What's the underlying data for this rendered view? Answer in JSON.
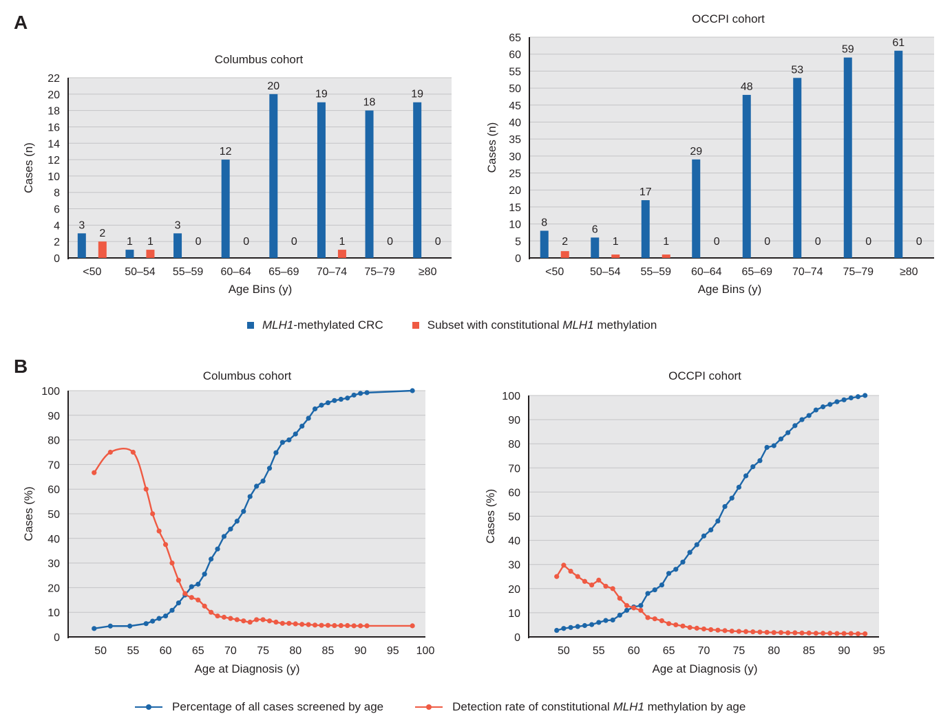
{
  "panels": {
    "a": "A",
    "b": "B"
  },
  "colors": {
    "blue": "#1c66a8",
    "orange": "#ef5a43",
    "plot_bg": "#e7e7e8",
    "grid": "#c4c4c6",
    "axis": "#231f20"
  },
  "legend_a": {
    "item1_italic": "MLH1",
    "item1_rest": "-methylated CRC",
    "item2_pre": "Subset with constitutional ",
    "item2_italic": "MLH1",
    "item2_post": " methylation"
  },
  "legend_b": {
    "item1": "Percentage of all cases screened by age",
    "item2_pre": "Detection rate of constitutional ",
    "item2_italic": "MLH1",
    "item2_post": " methylation by age"
  },
  "chart_data": [
    {
      "type": "bar",
      "title": "Columbus cohort",
      "xlabel": "Age Bins (y)",
      "ylabel": "Cases (n)",
      "categories": [
        "<50",
        "50–54",
        "55–59",
        "60–64",
        "65–69",
        "70–74",
        "75–79",
        "≥80"
      ],
      "ylim": [
        0,
        22
      ],
      "yticks": [
        0,
        2,
        4,
        6,
        8,
        10,
        12,
        14,
        16,
        18,
        20,
        22
      ],
      "grid": true,
      "series": [
        {
          "name": "MLH1-methylated CRC",
          "color": "#1c66a8",
          "values": [
            3,
            1,
            3,
            12,
            20,
            19,
            18,
            19
          ]
        },
        {
          "name": "Subset with constitutional MLH1 methylation",
          "color": "#ef5a43",
          "values": [
            2,
            1,
            0,
            0,
            0,
            1,
            0,
            0
          ]
        }
      ]
    },
    {
      "type": "bar",
      "title": "OCCPI cohort",
      "xlabel": "Age Bins (y)",
      "ylabel": "Cases (n)",
      "categories": [
        "<50",
        "50–54",
        "55–59",
        "60–64",
        "65–69",
        "70–74",
        "75–79",
        "≥80"
      ],
      "ylim": [
        0,
        65
      ],
      "yticks": [
        0,
        5,
        10,
        15,
        20,
        25,
        30,
        35,
        40,
        45,
        50,
        55,
        60,
        65
      ],
      "grid": true,
      "series": [
        {
          "name": "MLH1-methylated CRC",
          "color": "#1c66a8",
          "values": [
            8,
            6,
            17,
            29,
            48,
            53,
            59,
            61
          ]
        },
        {
          "name": "Subset with constitutional MLH1 methylation",
          "color": "#ef5a43",
          "values": [
            2,
            1,
            1,
            0,
            0,
            0,
            0,
            0
          ]
        }
      ]
    },
    {
      "type": "line",
      "title": "Columbus cohort",
      "xlabel": "Age at Diagnosis (y)",
      "ylabel": "Cases (%)",
      "xlim": [
        45,
        100
      ],
      "xticks": [
        50,
        55,
        60,
        65,
        70,
        75,
        80,
        85,
        90,
        95,
        100
      ],
      "ylim": [
        0,
        100
      ],
      "yticks": [
        0,
        10,
        20,
        30,
        40,
        50,
        60,
        70,
        80,
        90,
        100
      ],
      "grid": true,
      "series": [
        {
          "name": "Percentage of all cases screened by age",
          "color": "#1c66a8",
          "smooth": false,
          "x": [
            49,
            51.5,
            54.5,
            57,
            58,
            59,
            60,
            61,
            62,
            63,
            64,
            65,
            66,
            67,
            68,
            69,
            70,
            71,
            72,
            73,
            74,
            75,
            76,
            77,
            78,
            79,
            80,
            81,
            82,
            83,
            84,
            85,
            86,
            87,
            88,
            89,
            90,
            91,
            98
          ],
          "y": [
            3.4,
            4.4,
            4.4,
            5.4,
            6.4,
            7.5,
            8.5,
            10.8,
            13.8,
            17,
            20.4,
            21.4,
            25.5,
            31.6,
            35.7,
            40.8,
            43.8,
            47,
            51,
            57,
            61.2,
            63.3,
            68.5,
            74.8,
            79,
            80,
            82.4,
            85.6,
            88.8,
            92.6,
            94.1,
            95.1,
            96,
            96.5,
            97,
            98.2,
            98.9,
            99.2,
            100
          ]
        },
        {
          "name": "Detection rate of constitutional MLH1 methylation by age",
          "color": "#ef5a43",
          "smooth": true,
          "x": [
            49,
            51.5,
            55,
            57,
            58,
            59,
            60,
            61,
            62,
            63,
            64,
            65,
            66,
            67,
            68,
            69,
            70,
            71,
            72,
            73,
            74,
            75,
            76,
            77,
            78,
            79,
            80,
            81,
            82,
            83,
            84,
            85,
            86,
            87,
            88,
            89,
            90,
            91,
            98
          ],
          "y": [
            66.7,
            75,
            75,
            60,
            50,
            43,
            37.5,
            30,
            23,
            17.6,
            16,
            15,
            12.5,
            10,
            8.5,
            8,
            7.5,
            7,
            6.5,
            6,
            7,
            7,
            6.5,
            6,
            5.5,
            5.5,
            5.3,
            5.1,
            5,
            4.8,
            4.7,
            4.7,
            4.6,
            4.6,
            4.6,
            4.5,
            4.5,
            4.5,
            4.5
          ]
        }
      ]
    },
    {
      "type": "line",
      "title": "OCCPI cohort",
      "xlabel": "Age at Diagnosis (y)",
      "ylabel": "Cases (%)",
      "xlim": [
        45,
        95
      ],
      "xticks": [
        50,
        55,
        60,
        65,
        70,
        75,
        80,
        85,
        90,
        95
      ],
      "ylim": [
        0,
        100
      ],
      "yticks": [
        0,
        10,
        20,
        30,
        40,
        50,
        60,
        70,
        80,
        90,
        100
      ],
      "grid": true,
      "series": [
        {
          "name": "Percentage of all cases screened by age",
          "color": "#1c66a8",
          "smooth": false,
          "x": [
            49,
            50,
            51,
            52,
            53,
            54,
            55,
            56,
            57,
            58,
            59,
            60,
            61,
            62,
            63,
            64,
            65,
            66,
            67,
            68,
            69,
            70,
            71,
            72,
            73,
            74,
            75,
            76,
            77,
            78,
            79,
            80,
            81,
            82,
            83,
            84,
            85,
            86,
            87,
            88,
            89,
            90,
            91,
            92,
            93
          ],
          "y": [
            2.7,
            3.5,
            3.9,
            4.3,
            4.7,
            5.1,
            6,
            6.8,
            7,
            9,
            11,
            12.4,
            13,
            18,
            19.5,
            21.5,
            26.3,
            28,
            31,
            35,
            38.2,
            41.8,
            44.3,
            48,
            54,
            57.5,
            62,
            66.7,
            70.5,
            73,
            78.5,
            79.2,
            82,
            84.6,
            87.5,
            90,
            91.7,
            94,
            95.3,
            96.3,
            97.4,
            98.2,
            99,
            99.5,
            100
          ]
        },
        {
          "name": "Detection rate of constitutional MLH1 methylation by age",
          "color": "#ef5a43",
          "smooth": false,
          "x": [
            49,
            50,
            51,
            52,
            53,
            54,
            55,
            56,
            57,
            58,
            59,
            60,
            61,
            62,
            63,
            64,
            65,
            66,
            67,
            68,
            69,
            70,
            71,
            72,
            73,
            74,
            75,
            76,
            77,
            78,
            79,
            80,
            81,
            82,
            83,
            84,
            85,
            86,
            87,
            88,
            89,
            90,
            91,
            92,
            93
          ],
          "y": [
            25,
            29.7,
            27.2,
            25,
            23,
            21.5,
            23.5,
            21,
            20,
            16,
            13,
            12,
            11,
            8,
            7.5,
            6.7,
            5.5,
            5,
            4.5,
            3.9,
            3.6,
            3.3,
            3,
            2.8,
            2.6,
            2.4,
            2.3,
            2.2,
            2.1,
            2,
            1.9,
            1.8,
            1.8,
            1.7,
            1.7,
            1.6,
            1.6,
            1.5,
            1.5,
            1.5,
            1.4,
            1.4,
            1.4,
            1.3,
            1.3
          ]
        }
      ]
    }
  ]
}
